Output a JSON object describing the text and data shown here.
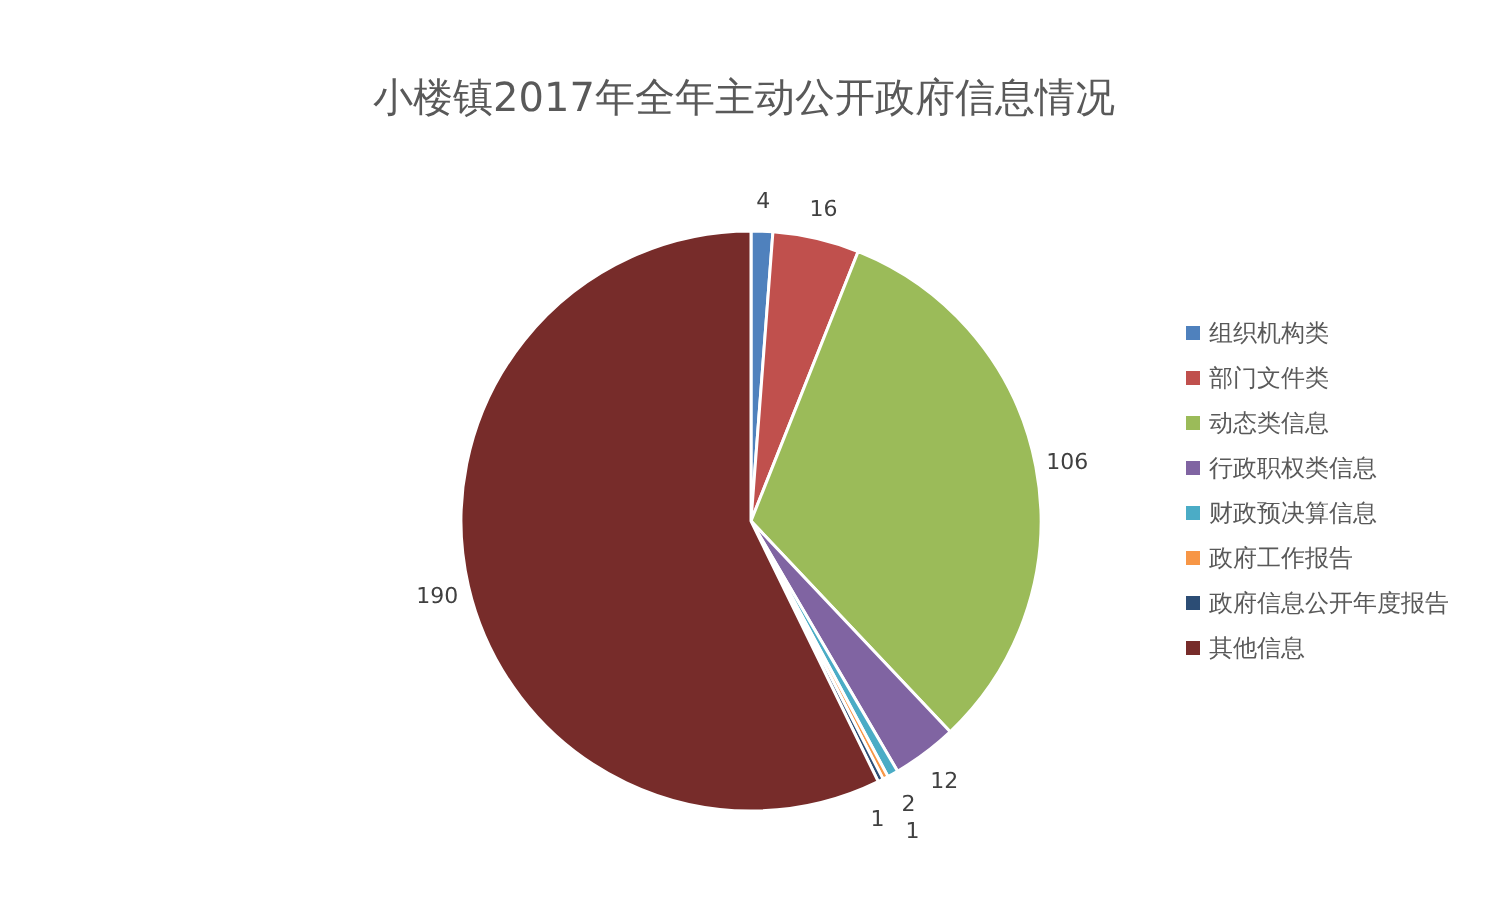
{
  "chart_data": {
    "type": "pie",
    "title": "小楼镇2017年全年主动公开政府信息情况",
    "categories": [
      "组织机构类",
      "部门文件类",
      "动态类信息",
      "行政职权类信息",
      "财政预决算信息",
      "政府工作报告",
      "政府信息公开年度报告",
      "其他信息"
    ],
    "values": [
      4,
      16,
      106,
      12,
      2,
      1,
      1,
      190
    ],
    "colors": [
      "#4f81bd",
      "#c0504d",
      "#9bbb59",
      "#8064a2",
      "#4bacc6",
      "#f79646",
      "#2c4d75",
      "#772c2a"
    ],
    "data_labels": true,
    "legend": "right"
  }
}
